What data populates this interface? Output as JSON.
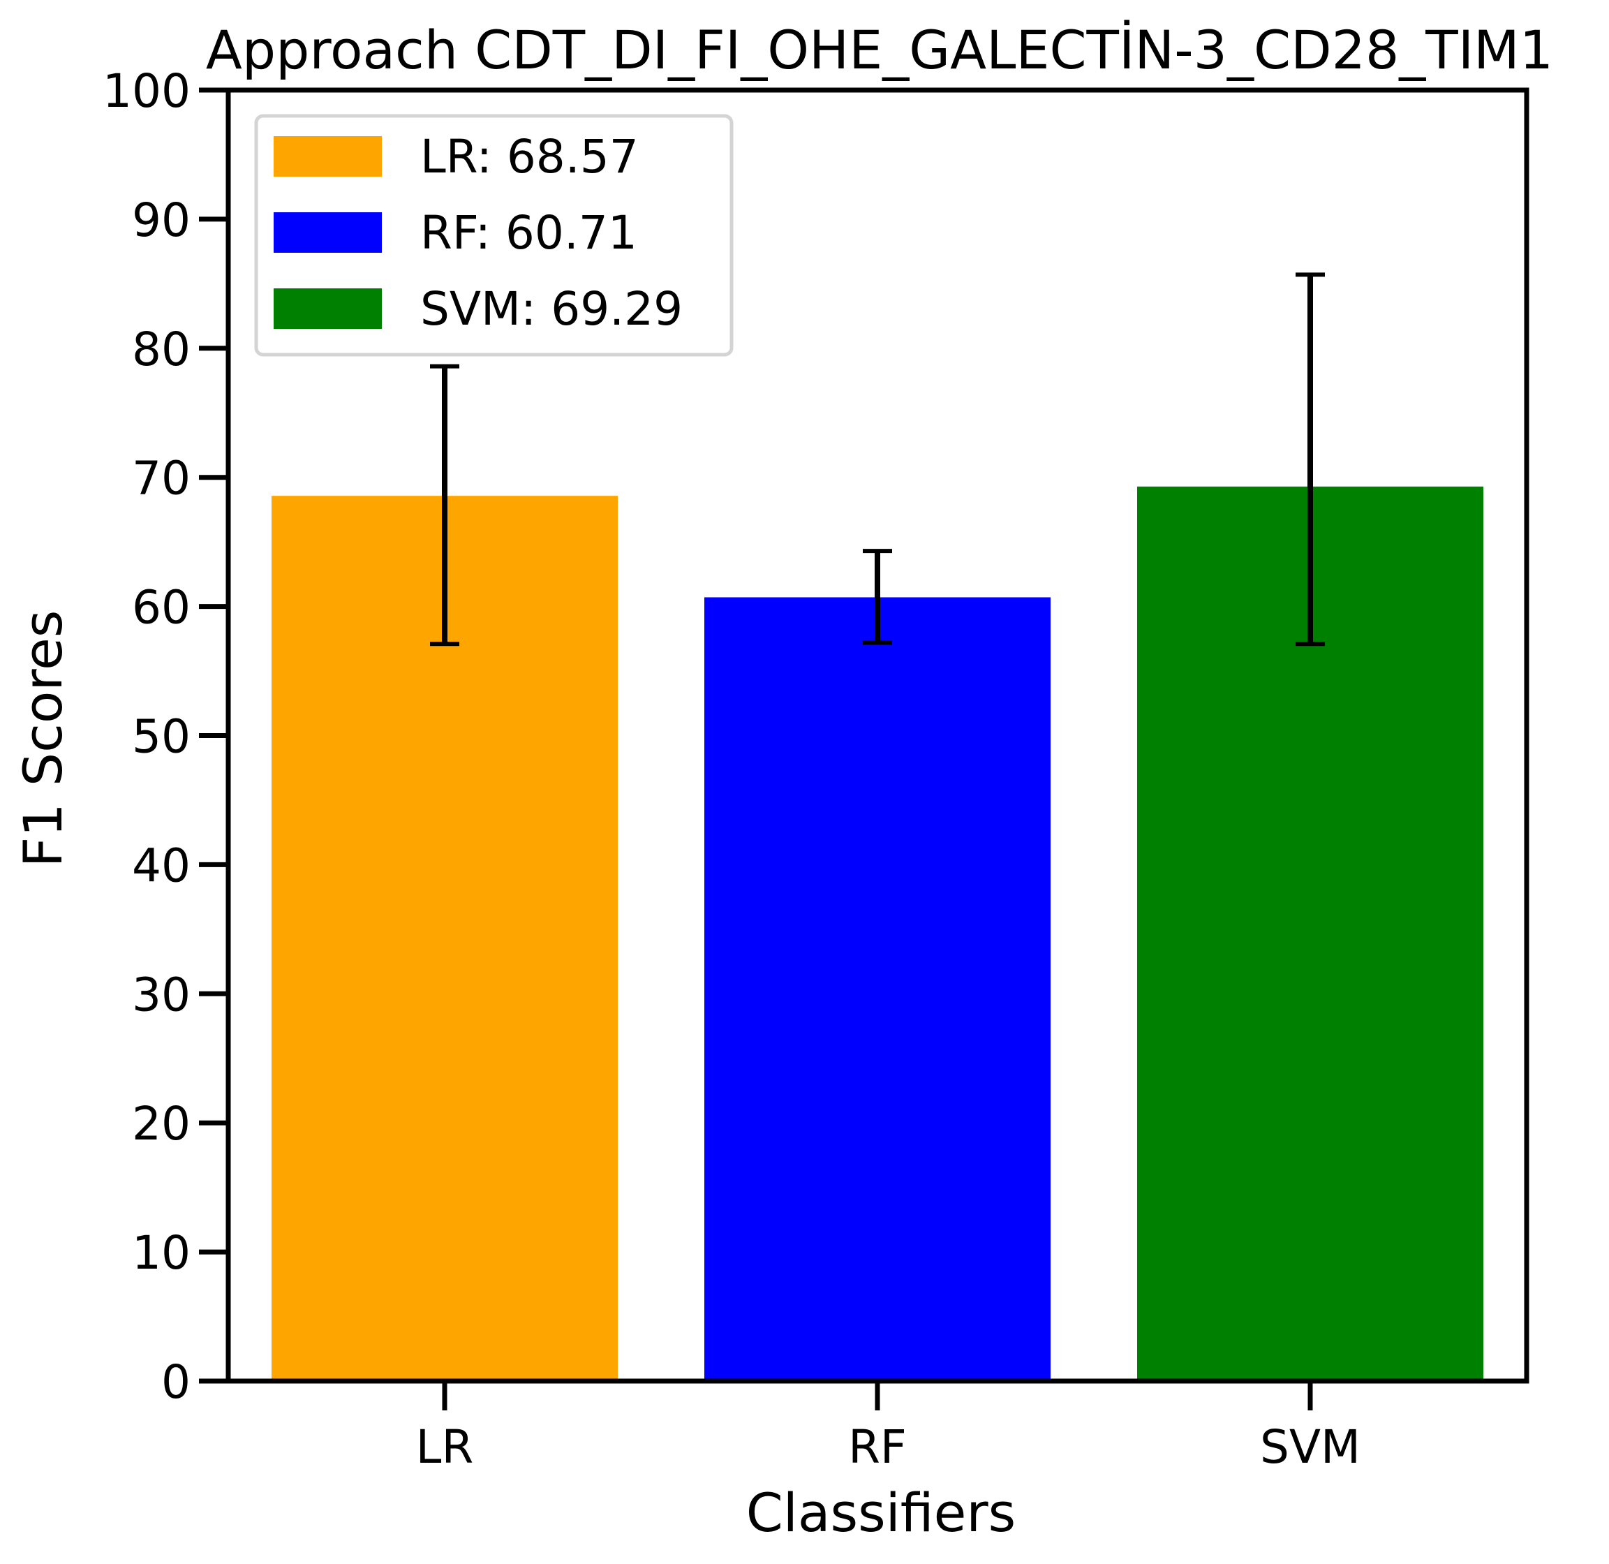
{
  "chart_data": {
    "type": "bar",
    "title": "Approach CDT_DI_FI_OHE_GALECTİN-3_CD28_TIM1",
    "xlabel": "Classifiers",
    "ylabel": "F1 Scores",
    "ylim": [
      0,
      100
    ],
    "yticks": [
      0,
      10,
      20,
      30,
      40,
      50,
      60,
      70,
      80,
      90,
      100
    ],
    "categories": [
      "LR",
      "RF",
      "SVM"
    ],
    "values": [
      68.57,
      60.71,
      69.29
    ],
    "error_bars": [
      {
        "low": 57.1,
        "high": 78.6
      },
      {
        "low": 57.2,
        "high": 64.3
      },
      {
        "low": 57.1,
        "high": 85.7
      }
    ],
    "colors": [
      "#ffa500",
      "#0000ff",
      "#008000"
    ],
    "grid": false,
    "legend": {
      "placement": "top-left",
      "entries": [
        "LR: 68.57",
        "RF: 60.71",
        "SVM: 69.29"
      ]
    }
  }
}
